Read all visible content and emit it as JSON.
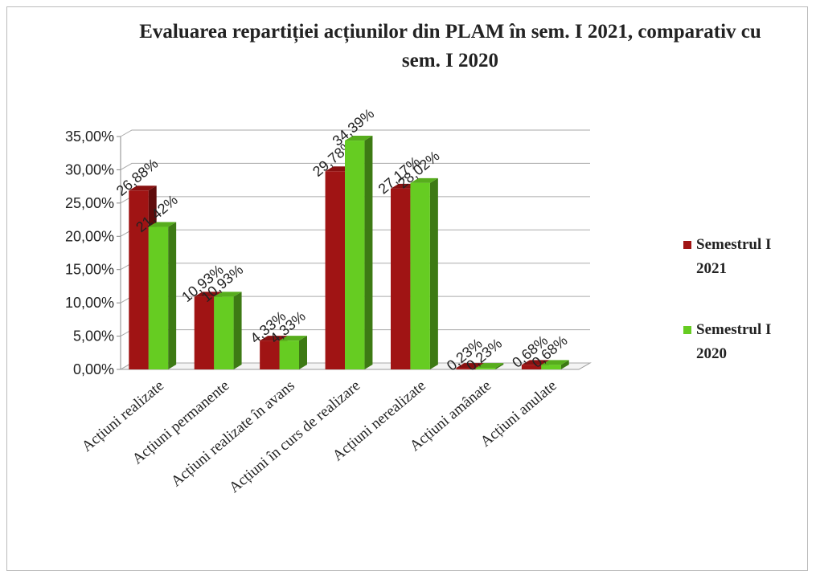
{
  "chart_data": {
    "type": "bar",
    "title": "Evaluarea repartiției acțiunilor din PLAM în sem. I 2021, comparativ cu sem. I 2020",
    "categories": [
      "Acțiuni realizate",
      "Acțiuni permanente",
      "Acțiuni realizate în avans",
      "Acțiuni în curs de realizare",
      "Acțiuni nerealizate",
      "Acțiuni amânate",
      "Acțiuni anulate"
    ],
    "series": [
      {
        "name": "Semestrul I 2021",
        "color": "#a01414",
        "values": [
          26.88,
          10.93,
          4.33,
          29.78,
          27.17,
          0.23,
          0.68
        ],
        "value_labels": [
          "26,88%",
          "10,93%",
          "4,33%",
          "29,78%",
          "27,17%",
          "0,23%",
          "0,68%"
        ]
      },
      {
        "name": "Semestrul I 2020",
        "color": "#66cc22",
        "values": [
          21.42,
          10.93,
          4.33,
          34.39,
          28.02,
          0.23,
          0.68
        ],
        "value_labels": [
          "21,42%",
          "10,93%",
          "4,33%",
          "34,39%",
          "28,02%",
          "0,23%",
          "0,68%"
        ]
      }
    ],
    "ylim": [
      0,
      35
    ],
    "yticks": [
      {
        "value": 0,
        "label": "0,00%"
      },
      {
        "value": 5,
        "label": "5,00%"
      },
      {
        "value": 10,
        "label": "10,00%"
      },
      {
        "value": 15,
        "label": "15,00%"
      },
      {
        "value": 20,
        "label": "20,00%"
      },
      {
        "value": 25,
        "label": "25,00%"
      },
      {
        "value": 30,
        "label": "30,00%"
      },
      {
        "value": 35,
        "label": "35,00%"
      }
    ],
    "grid": true,
    "legend": "right"
  }
}
